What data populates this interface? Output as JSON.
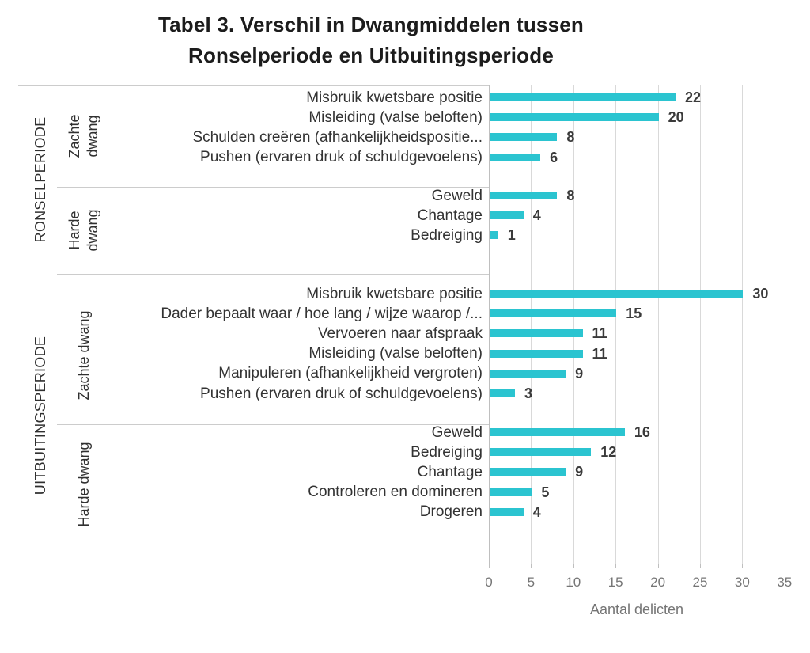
{
  "chart_data": {
    "type": "bar",
    "orientation": "horizontal",
    "title_lines": [
      "Tabel 3. Verschil in Dwangmiddelen tussen",
      "Ronselperiode en Uitbuitingsperiode"
    ],
    "xlabel": "Aantal delicten",
    "xlim": [
      0,
      35
    ],
    "xticks": [
      0,
      5,
      10,
      15,
      20,
      25,
      30,
      35
    ],
    "bar_color": "#2bc4d0",
    "grid": true,
    "legend": false,
    "groups": [
      {
        "period": "RONSELPERIODE",
        "subgroups": [
          {
            "label": "Zachte dwang",
            "items": [
              {
                "label": "Misbruik kwetsbare positie",
                "value": 22
              },
              {
                "label": "Misleiding (valse beloften)",
                "value": 20
              },
              {
                "label": "Schulden creëren (afhankelijkheidspositie...",
                "value": 8
              },
              {
                "label": "Pushen (ervaren druk of schuldgevoelens)",
                "value": 6
              }
            ]
          },
          {
            "label": "Harde dwang",
            "items": [
              {
                "label": "Geweld",
                "value": 8
              },
              {
                "label": "Chantage",
                "value": 4
              },
              {
                "label": "Bedreiging",
                "value": 1
              }
            ]
          }
        ]
      },
      {
        "period": "UITBUITINGSPERIODE",
        "subgroups": [
          {
            "label": "Zachte dwang",
            "items": [
              {
                "label": "Misbruik kwetsbare positie",
                "value": 30
              },
              {
                "label": "Dader bepaalt waar / hoe lang / wijze waarop /...",
                "value": 15
              },
              {
                "label": "Vervoeren naar afspraak",
                "value": 11
              },
              {
                "label": "Misleiding (valse beloften)",
                "value": 11
              },
              {
                "label": "Manipuleren (afhankelijkheid vergroten)",
                "value": 9
              },
              {
                "label": "Pushen (ervaren druk of schuldgevoelens)",
                "value": 3
              }
            ]
          },
          {
            "label": "Harde dwang",
            "items": [
              {
                "label": "Geweld",
                "value": 16
              },
              {
                "label": "Bedreiging",
                "value": 12
              },
              {
                "label": "Chantage",
                "value": 9
              },
              {
                "label": "Controleren en domineren",
                "value": 5
              },
              {
                "label": "Drogeren",
                "value": 4
              }
            ]
          }
        ]
      }
    ]
  }
}
